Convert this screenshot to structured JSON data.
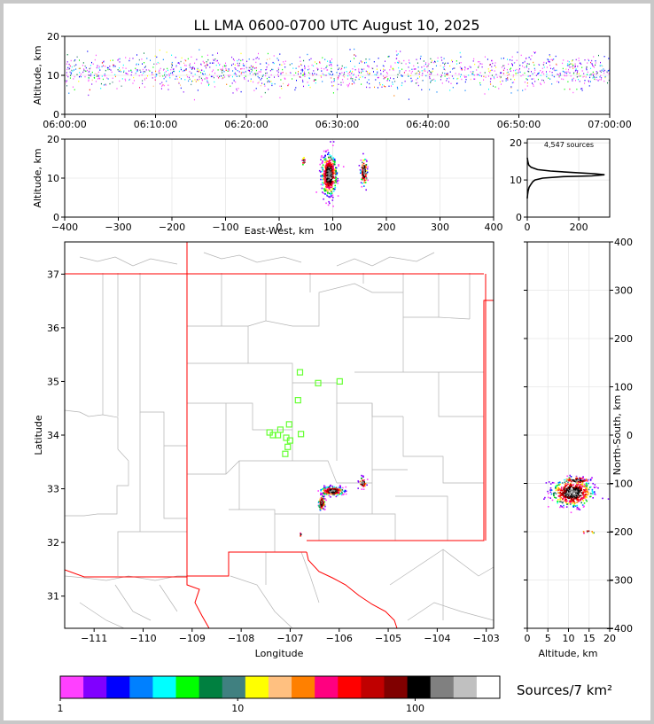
{
  "title": "LL LMA 0600-0700 UTC August 10, 2025",
  "chart_data": [
    {
      "type": "scatter",
      "name": "altitude-time",
      "ylabel": "Altitude, km",
      "ylim": [
        0,
        20
      ],
      "xlim": [
        "06:00:00",
        "07:00:00"
      ],
      "x_ticks": [
        "06:00:00",
        "06:10:00",
        "06:20:00",
        "06:30:00",
        "06:40:00",
        "06:50:00",
        "07:00:00"
      ],
      "y_ticks": [
        0,
        10,
        20
      ],
      "grid": true
    },
    {
      "type": "scatter",
      "name": "altitude-east-west",
      "xlabel": "East-West, km",
      "ylabel": "Altitude, km",
      "xlim": [
        -400,
        400
      ],
      "ylim": [
        0,
        20
      ],
      "x_ticks": [
        -400,
        -300,
        -200,
        -100,
        0,
        100,
        200,
        300,
        400
      ],
      "y_ticks": [
        0,
        10,
        20
      ],
      "clusters": [
        {
          "x": 92,
          "y": 11,
          "sx": 7,
          "sy": 2.6,
          "n": 520
        },
        {
          "x": 157,
          "y": 11.8,
          "sx": 3,
          "sy": 1.8,
          "n": 110
        },
        {
          "x": 45,
          "y": 14.5,
          "sx": 1.5,
          "sy": 0.6,
          "n": 14
        }
      ],
      "grid": true
    },
    {
      "type": "line",
      "name": "altitude-histogram",
      "annotation": "4,547 sources",
      "xlim": [
        0,
        320
      ],
      "ylim": [
        0,
        21
      ],
      "x_ticks": [
        0,
        200
      ],
      "y_ticks": [
        0,
        10,
        20
      ],
      "profile": [
        [
          0,
          5
        ],
        [
          1,
          6
        ],
        [
          3,
          7
        ],
        [
          7,
          8
        ],
        [
          12,
          8.6
        ],
        [
          16,
          9
        ],
        [
          22,
          9.6
        ],
        [
          30,
          10
        ],
        [
          60,
          10.5
        ],
        [
          140,
          10.9
        ],
        [
          250,
          11.1
        ],
        [
          300,
          11.4
        ],
        [
          260,
          11.7
        ],
        [
          180,
          12
        ],
        [
          90,
          12.4
        ],
        [
          40,
          12.8
        ],
        [
          15,
          13.4
        ],
        [
          6,
          14
        ],
        [
          2,
          15
        ],
        [
          0,
          16
        ]
      ],
      "grid": true
    },
    {
      "type": "scatter",
      "name": "plan-view-map",
      "xlabel": "Longitude",
      "ylabel": "Latitude",
      "xlim": [
        -111.6,
        -102.85
      ],
      "ylim": [
        30.4,
        37.6
      ],
      "x_ticks": [
        -111,
        -110,
        -109,
        -108,
        -107,
        -106,
        -105,
        -104,
        -103
      ],
      "y_ticks": [
        31,
        32,
        33,
        34,
        35,
        36,
        37
      ],
      "stations": [
        [
          -106.8,
          35.17
        ],
        [
          -106.43,
          34.97
        ],
        [
          -105.99,
          35.0
        ],
        [
          -106.84,
          34.65
        ],
        [
          -107.02,
          34.2
        ],
        [
          -107.2,
          34.1
        ],
        [
          -107.35,
          34.0
        ],
        [
          -107.08,
          33.95
        ],
        [
          -107.0,
          33.9
        ],
        [
          -106.78,
          34.02
        ],
        [
          -107.25,
          34.0
        ],
        [
          -107.42,
          34.05
        ],
        [
          -107.05,
          33.78
        ],
        [
          -107.1,
          33.65
        ]
      ],
      "clusters": [
        {
          "lon": -106.15,
          "lat": 32.97,
          "slon": 0.12,
          "slat": 0.04,
          "n": 260
        },
        {
          "lon": -106.37,
          "lat": 32.75,
          "slon": 0.03,
          "slat": 0.07,
          "n": 90
        },
        {
          "lon": -105.53,
          "lat": 33.12,
          "slon": 0.04,
          "slat": 0.05,
          "n": 40
        },
        {
          "lon": -106.8,
          "lat": 32.16,
          "slon": 0.01,
          "slat": 0.02,
          "n": 5
        }
      ]
    },
    {
      "type": "scatter",
      "name": "north-south-altitude",
      "xlabel": "Altitude, km",
      "ylabel": "North-South, km",
      "xlim": [
        0,
        20
      ],
      "ylim": [
        -400,
        400
      ],
      "x_ticks": [
        0,
        5,
        10,
        15,
        20
      ],
      "y_ticks": [
        -400,
        -300,
        -200,
        -100,
        0,
        100,
        200,
        300,
        400
      ],
      "clusters": [
        {
          "x": 10.8,
          "y": -118,
          "sx": 2.5,
          "sy": 14,
          "n": 520
        },
        {
          "x": 12,
          "y": -92,
          "sx": 1.6,
          "sy": 4,
          "n": 60
        },
        {
          "x": 14.5,
          "y": -200,
          "sx": 0.8,
          "sy": 3,
          "n": 8
        }
      ],
      "grid": true
    }
  ],
  "colorbar": {
    "label": "Sources/7 km²",
    "tick_labels": [
      "1",
      "10",
      "100"
    ],
    "tick_values": [
      1,
      10,
      100
    ],
    "range": [
      1,
      300
    ],
    "colors": [
      "#ff40ff",
      "#8000ff",
      "#0000ff",
      "#0080ff",
      "#00ffff",
      "#00ff00",
      "#008040",
      "#408080",
      "#ffff00",
      "#ffc080",
      "#ff8000",
      "#ff0080",
      "#ff0000",
      "#c00000",
      "#800000",
      "#000000",
      "#808080",
      "#c0c0c0",
      "#ffffff"
    ]
  }
}
